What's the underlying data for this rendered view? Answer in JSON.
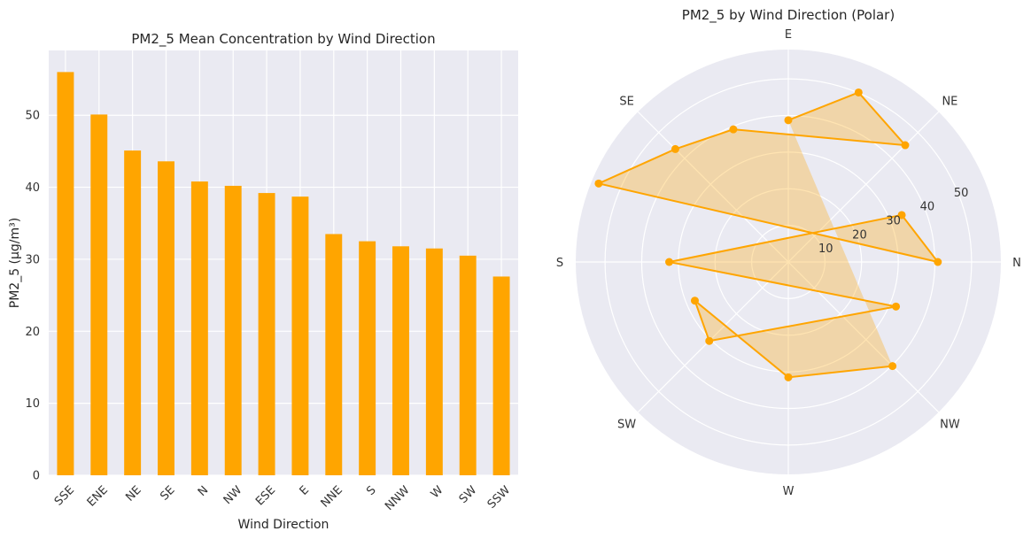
{
  "chart_data": [
    {
      "type": "bar",
      "title": "PM2_5 Mean Concentration by Wind Direction",
      "xlabel": "Wind Direction",
      "ylabel": "PM2_5 (μg/m³)",
      "ylim": [
        0,
        59
      ],
      "yticks": [
        0,
        10,
        20,
        30,
        40,
        50
      ],
      "grid": true,
      "color": "#ffa500",
      "categories": [
        "SSE",
        "ENE",
        "NE",
        "SE",
        "N",
        "NW",
        "ESE",
        "E",
        "NNE",
        "S",
        "NNW",
        "W",
        "SW",
        "SSW"
      ],
      "values": [
        56.0,
        50.1,
        45.1,
        43.6,
        40.8,
        40.2,
        39.2,
        38.7,
        33.5,
        32.5,
        31.8,
        31.5,
        30.5,
        27.6
      ]
    },
    {
      "type": "polar-line",
      "title": "PM2_5 by Wind Direction (Polar)",
      "color": "#ffa500",
      "direction_labels": [
        "N",
        "NE",
        "E",
        "SE",
        "S",
        "SW",
        "W",
        "NW"
      ],
      "rticks": [
        10,
        20,
        30,
        40,
        50
      ],
      "rlim": [
        0,
        58
      ],
      "grid": true,
      "points": [
        {
          "category": "E",
          "value": 38.7
        },
        {
          "category": "ENE",
          "value": 50.1
        },
        {
          "category": "NE",
          "value": 45.1
        },
        {
          "category": "ESE",
          "value": 39.2
        },
        {
          "category": "SE",
          "value": 43.6
        },
        {
          "category": "SSE",
          "value": 56.0
        },
        {
          "category": "N",
          "value": 40.8
        },
        {
          "category": "NNE",
          "value": 33.5
        },
        {
          "category": "S",
          "value": 32.5
        },
        {
          "category": "NNW",
          "value": 31.8
        },
        {
          "category": "SW",
          "value": 30.5
        },
        {
          "category": "SSW",
          "value": 27.6
        },
        {
          "category": "W",
          "value": 31.5
        },
        {
          "category": "NW",
          "value": 40.2
        }
      ]
    }
  ]
}
